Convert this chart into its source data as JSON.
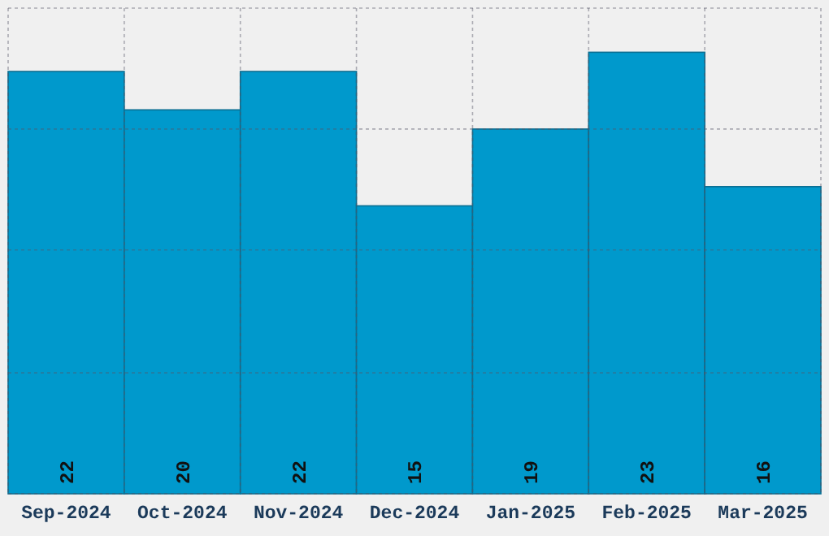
{
  "chart_data": {
    "type": "bar",
    "categories": [
      "Sep-2024",
      "Oct-2024",
      "Nov-2024",
      "Dec-2024",
      "Jan-2025",
      "Feb-2025",
      "Mar-2025"
    ],
    "values": [
      22,
      20,
      22,
      15,
      19,
      23,
      16
    ],
    "color": "#0099cc",
    "data_labels": true,
    "ylim": [
      0,
      25.3
    ],
    "yticks": [
      {
        "value": 0,
        "label": null
      },
      {
        "value": 6.3,
        "label": null
      },
      {
        "value": 12.7,
        "label": null
      },
      {
        "value": 19,
        "label": null
      },
      {
        "value": 25.3,
        "label": null
      }
    ],
    "tick_labels": "x",
    "grid": true
  }
}
